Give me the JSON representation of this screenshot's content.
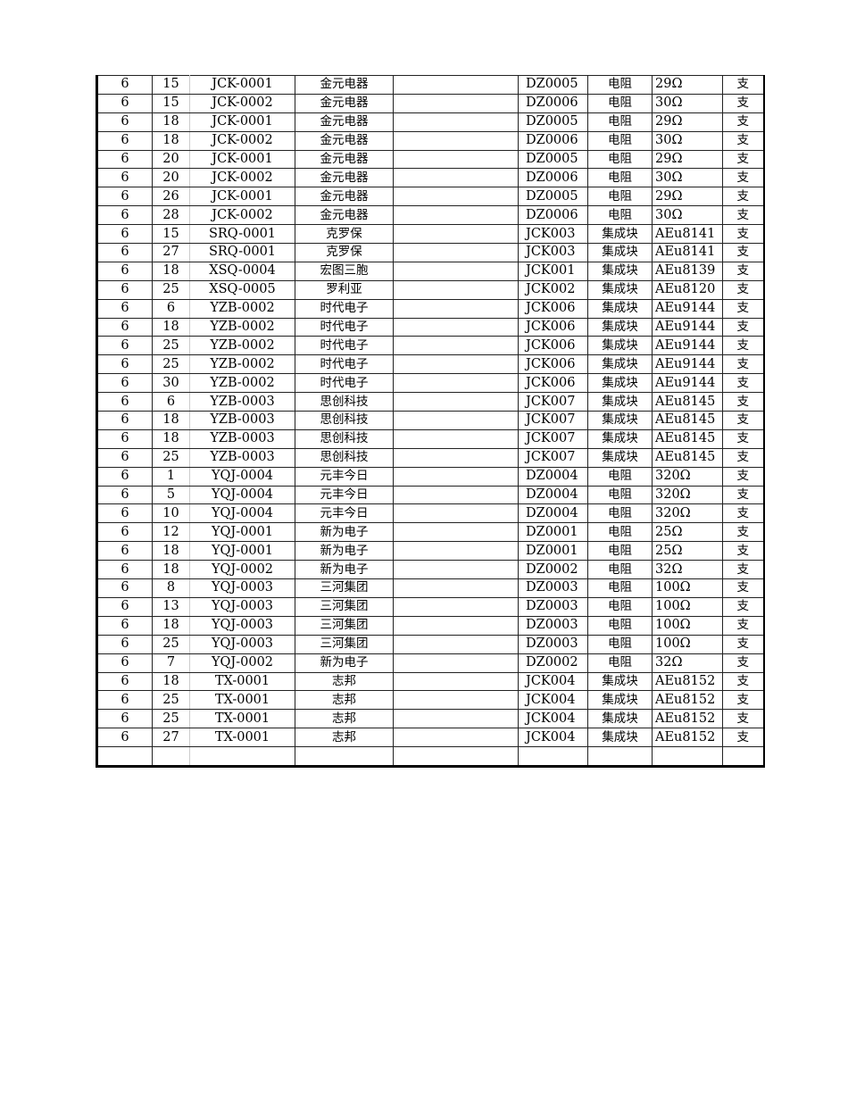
{
  "table": {
    "rows": [
      [
        "6",
        "15",
        "JCK-0001",
        "金元电器",
        "",
        "DZ0005",
        "电阻",
        "29Ω",
        "支"
      ],
      [
        "6",
        "15",
        "JCK-0002",
        "金元电器",
        "",
        "DZ0006",
        "电阻",
        "30Ω",
        "支"
      ],
      [
        "6",
        "18",
        "JCK-0001",
        "金元电器",
        "",
        "DZ0005",
        "电阻",
        "29Ω",
        "支"
      ],
      [
        "6",
        "18",
        "JCK-0002",
        "金元电器",
        "",
        "DZ0006",
        "电阻",
        "30Ω",
        "支"
      ],
      [
        "6",
        "20",
        "JCK-0001",
        "金元电器",
        "",
        "DZ0005",
        "电阻",
        "29Ω",
        "支"
      ],
      [
        "6",
        "20",
        "JCK-0002",
        "金元电器",
        "",
        "DZ0006",
        "电阻",
        "30Ω",
        "支"
      ],
      [
        "6",
        "26",
        "JCK-0001",
        "金元电器",
        "",
        "DZ0005",
        "电阻",
        "29Ω",
        "支"
      ],
      [
        "6",
        "28",
        "JCK-0002",
        "金元电器",
        "",
        "DZ0006",
        "电阻",
        "30Ω",
        "支"
      ],
      [
        "6",
        "15",
        "SRQ-0001",
        "克罗保",
        "",
        "JCK003",
        "集成块",
        "AEu8141",
        "支"
      ],
      [
        "6",
        "27",
        "SRQ-0001",
        "克罗保",
        "",
        "JCK003",
        "集成块",
        "AEu8141",
        "支"
      ],
      [
        "6",
        "18",
        "XSQ-0004",
        "宏图三胞",
        "",
        "JCK001",
        "集成块",
        "AEu8139",
        "支"
      ],
      [
        "6",
        "25",
        "XSQ-0005",
        "罗利亚",
        "",
        "JCK002",
        "集成块",
        "AEu8120",
        "支"
      ],
      [
        "6",
        "6",
        "YZB-0002",
        "时代电子",
        "",
        "JCK006",
        "集成块",
        "AEu9144",
        "支"
      ],
      [
        "6",
        "18",
        "YZB-0002",
        "时代电子",
        "",
        "JCK006",
        "集成块",
        "AEu9144",
        "支"
      ],
      [
        "6",
        "25",
        "YZB-0002",
        "时代电子",
        "",
        "JCK006",
        "集成块",
        "AEu9144",
        "支"
      ],
      [
        "6",
        "25",
        "YZB-0002",
        "时代电子",
        "",
        "JCK006",
        "集成块",
        "AEu9144",
        "支"
      ],
      [
        "6",
        "30",
        "YZB-0002",
        "时代电子",
        "",
        "JCK006",
        "集成块",
        "AEu9144",
        "支"
      ],
      [
        "6",
        "6",
        "YZB-0003",
        "思创科技",
        "",
        "JCK007",
        "集成块",
        "AEu8145",
        "支"
      ],
      [
        "6",
        "18",
        "YZB-0003",
        "思创科技",
        "",
        "JCK007",
        "集成块",
        "AEu8145",
        "支"
      ],
      [
        "6",
        "18",
        "YZB-0003",
        "思创科技",
        "",
        "JCK007",
        "集成块",
        "AEu8145",
        "支"
      ],
      [
        "6",
        "25",
        "YZB-0003",
        "思创科技",
        "",
        "JCK007",
        "集成块",
        "AEu8145",
        "支"
      ],
      [
        "6",
        "1",
        "YQJ-0004",
        "元丰今日",
        "",
        "DZ0004",
        "电阻",
        "320Ω",
        "支"
      ],
      [
        "6",
        "5",
        "YQJ-0004",
        "元丰今日",
        "",
        "DZ0004",
        "电阻",
        "320Ω",
        "支"
      ],
      [
        "6",
        "10",
        "YQJ-0004",
        "元丰今日",
        "",
        "DZ0004",
        "电阻",
        "320Ω",
        "支"
      ],
      [
        "6",
        "12",
        "YQJ-0001",
        "新为电子",
        "",
        "DZ0001",
        "电阻",
        "25Ω",
        "支"
      ],
      [
        "6",
        "18",
        "YQJ-0001",
        "新为电子",
        "",
        "DZ0001",
        "电阻",
        "25Ω",
        "支"
      ],
      [
        "6",
        "18",
        "YQJ-0002",
        "新为电子",
        "",
        "DZ0002",
        "电阻",
        "32Ω",
        "支"
      ],
      [
        "6",
        "8",
        "YQJ-0003",
        "三河集团",
        "",
        "DZ0003",
        "电阻",
        "100Ω",
        "支"
      ],
      [
        "6",
        "13",
        "YQJ-0003",
        "三河集团",
        "",
        "DZ0003",
        "电阻",
        "100Ω",
        "支"
      ],
      [
        "6",
        "18",
        "YQJ-0003",
        "三河集团",
        "",
        "DZ0003",
        "电阻",
        "100Ω",
        "支"
      ],
      [
        "6",
        "25",
        "YQJ-0003",
        "三河集团",
        "",
        "DZ0003",
        "电阻",
        "100Ω",
        "支"
      ],
      [
        "6",
        "7",
        "YQJ-0002",
        "新为电子",
        "",
        "DZ0002",
        "电阻",
        "32Ω",
        "支"
      ],
      [
        "6",
        "18",
        "TX-0001",
        "志邦",
        "",
        "JCK004",
        "集成块",
        "AEu8152",
        "支"
      ],
      [
        "6",
        "25",
        "TX-0001",
        "志邦",
        "",
        "JCK004",
        "集成块",
        "AEu8152",
        "支"
      ],
      [
        "6",
        "25",
        "TX-0001",
        "志邦",
        "",
        "JCK004",
        "集成块",
        "AEu8152",
        "支"
      ],
      [
        "6",
        "27",
        "TX-0001",
        "志邦",
        "",
        "JCK004",
        "集成块",
        "AEu8152",
        "支"
      ],
      [
        "",
        "",
        "",
        "",
        "",
        "",
        "",
        "",
        ""
      ]
    ]
  }
}
